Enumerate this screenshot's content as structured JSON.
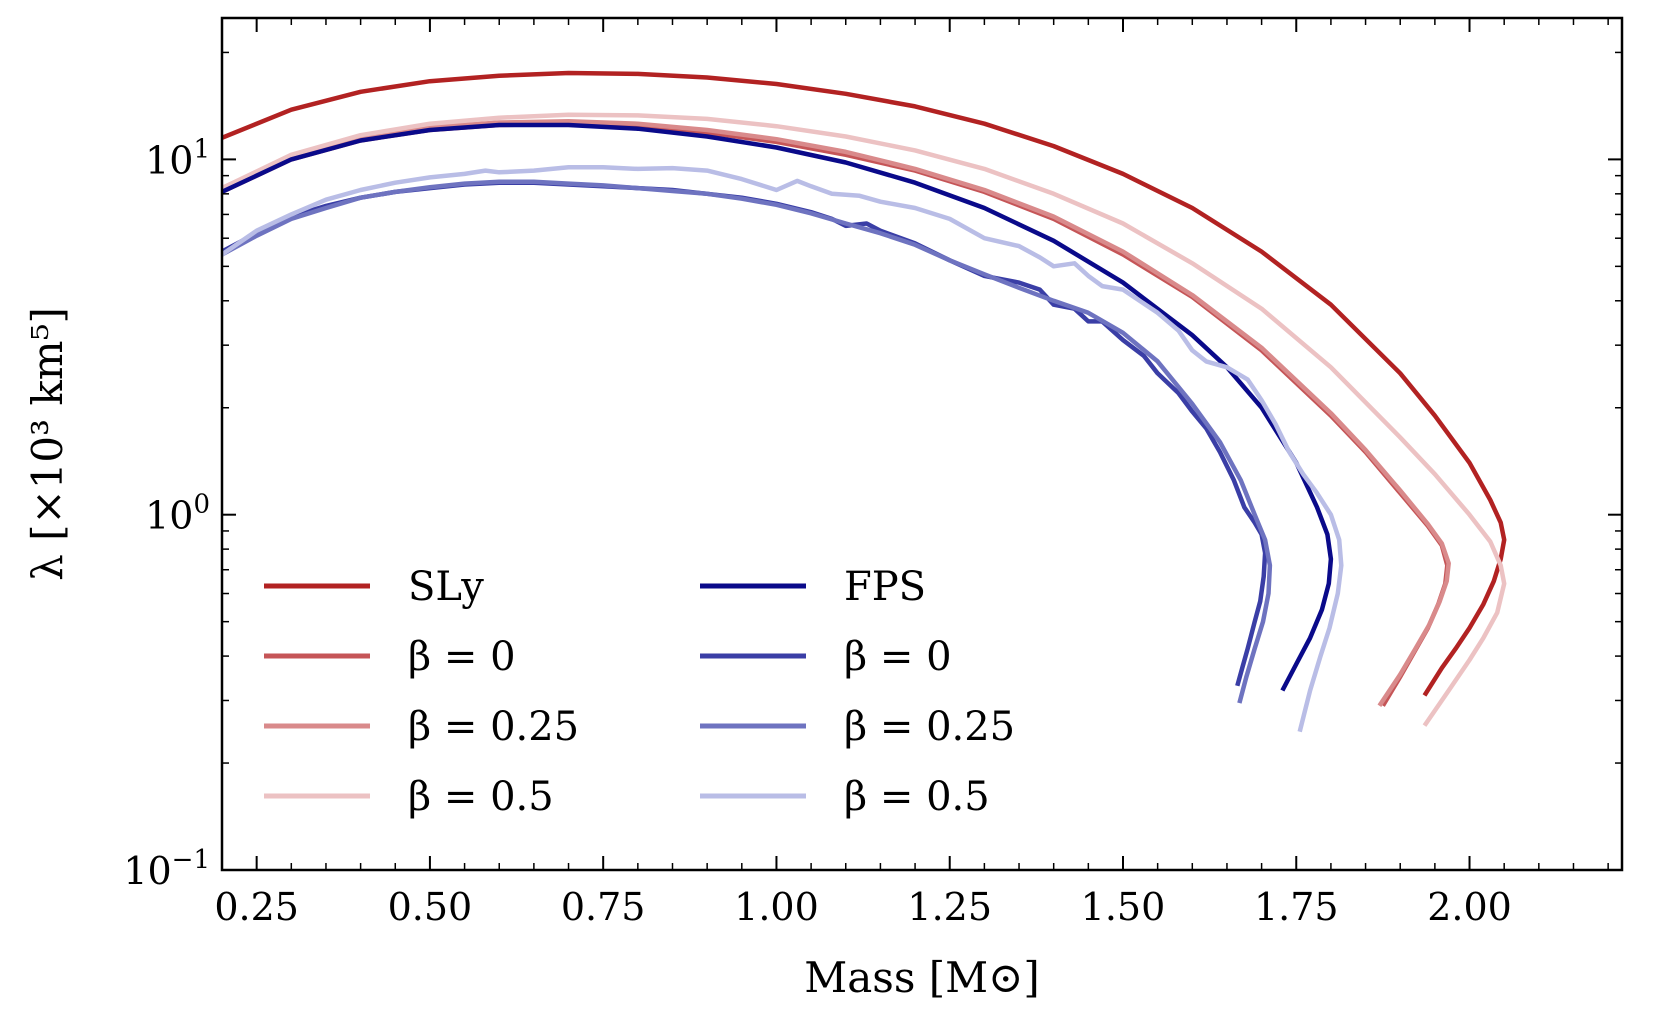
{
  "chart_data": {
    "type": "line",
    "title": "",
    "xlabel": "Mass [M⊙]",
    "ylabel": "λ [×10³ km⁵]",
    "xlim": [
      0.2,
      2.22
    ],
    "ylim": [
      0.1,
      25
    ],
    "yscale": "log",
    "grid": false,
    "legend_position": "lower-left",
    "legend_columns": 2,
    "xticks": [
      {
        "value": 0.25,
        "label": "0.25"
      },
      {
        "value": 0.5,
        "label": "0.50"
      },
      {
        "value": 0.75,
        "label": "0.75"
      },
      {
        "value": 1.0,
        "label": "1.00"
      },
      {
        "value": 1.25,
        "label": "1.25"
      },
      {
        "value": 1.5,
        "label": "1.50"
      },
      {
        "value": 1.75,
        "label": "1.75"
      },
      {
        "value": 2.0,
        "label": "2.00"
      }
    ],
    "yticks": [
      {
        "value": 0.1,
        "base": "10",
        "exp": "−1"
      },
      {
        "value": 1,
        "base": "10",
        "exp": "0"
      },
      {
        "value": 10,
        "base": "10",
        "exp": "1"
      }
    ],
    "series": [
      {
        "name": "SLy",
        "color": "#b22222",
        "opacity": 1.0,
        "points": [
          [
            0.2,
            11.5
          ],
          [
            0.3,
            13.8
          ],
          [
            0.4,
            15.5
          ],
          [
            0.5,
            16.6
          ],
          [
            0.6,
            17.2
          ],
          [
            0.7,
            17.5
          ],
          [
            0.8,
            17.4
          ],
          [
            0.9,
            17.0
          ],
          [
            1.0,
            16.3
          ],
          [
            1.1,
            15.3
          ],
          [
            1.2,
            14.1
          ],
          [
            1.3,
            12.6
          ],
          [
            1.4,
            10.9
          ],
          [
            1.5,
            9.1
          ],
          [
            1.6,
            7.3
          ],
          [
            1.7,
            5.5
          ],
          [
            1.8,
            3.9
          ],
          [
            1.9,
            2.5
          ],
          [
            1.95,
            1.9
          ],
          [
            2.0,
            1.4
          ],
          [
            2.03,
            1.1
          ],
          [
            2.045,
            0.95
          ],
          [
            2.05,
            0.85
          ],
          [
            2.045,
            0.75
          ],
          [
            2.035,
            0.65
          ],
          [
            2.02,
            0.56
          ],
          [
            2.0,
            0.48
          ],
          [
            1.98,
            0.42
          ],
          [
            1.96,
            0.37
          ],
          [
            1.935,
            0.31
          ]
        ]
      },
      {
        "name": "β = 0",
        "color": "#c55557",
        "opacity": 1.0,
        "points": [
          [
            0.2,
            8.1
          ],
          [
            0.3,
            10.0
          ],
          [
            0.4,
            11.3
          ],
          [
            0.5,
            12.1
          ],
          [
            0.6,
            12.5
          ],
          [
            0.7,
            12.6
          ],
          [
            0.8,
            12.4
          ],
          [
            0.9,
            11.9
          ],
          [
            1.0,
            11.2
          ],
          [
            1.1,
            10.3
          ],
          [
            1.2,
            9.3
          ],
          [
            1.3,
            8.1
          ],
          [
            1.4,
            6.8
          ],
          [
            1.5,
            5.4
          ],
          [
            1.6,
            4.1
          ],
          [
            1.7,
            2.9
          ],
          [
            1.8,
            1.9
          ],
          [
            1.85,
            1.5
          ],
          [
            1.9,
            1.15
          ],
          [
            1.94,
            0.93
          ],
          [
            1.96,
            0.82
          ],
          [
            1.968,
            0.72
          ],
          [
            1.965,
            0.64
          ],
          [
            1.955,
            0.56
          ],
          [
            1.94,
            0.48
          ],
          [
            1.92,
            0.41
          ],
          [
            1.9,
            0.35
          ],
          [
            1.875,
            0.29
          ]
        ]
      },
      {
        "name": "β = 0.25",
        "color": "#d98a8b",
        "opacity": 1.0,
        "points": [
          [
            0.2,
            8.3
          ],
          [
            0.3,
            10.2
          ],
          [
            0.4,
            11.5
          ],
          [
            0.5,
            12.3
          ],
          [
            0.6,
            12.7
          ],
          [
            0.7,
            12.8
          ],
          [
            0.8,
            12.6
          ],
          [
            0.9,
            12.1
          ],
          [
            1.0,
            11.4
          ],
          [
            1.1,
            10.5
          ],
          [
            1.2,
            9.4
          ],
          [
            1.3,
            8.2
          ],
          [
            1.4,
            6.9
          ],
          [
            1.5,
            5.5
          ],
          [
            1.6,
            4.15
          ],
          [
            1.7,
            2.95
          ],
          [
            1.8,
            1.93
          ],
          [
            1.85,
            1.52
          ],
          [
            1.9,
            1.17
          ],
          [
            1.94,
            0.94
          ],
          [
            1.96,
            0.83
          ],
          [
            1.97,
            0.73
          ],
          [
            1.967,
            0.65
          ],
          [
            1.957,
            0.57
          ],
          [
            1.942,
            0.49
          ],
          [
            1.922,
            0.42
          ],
          [
            1.9,
            0.355
          ],
          [
            1.87,
            0.29
          ]
        ]
      },
      {
        "name": "β = 0.5",
        "color": "#ecc2c3",
        "opacity": 1.0,
        "points": [
          [
            0.2,
            8.3
          ],
          [
            0.3,
            10.3
          ],
          [
            0.4,
            11.7
          ],
          [
            0.5,
            12.6
          ],
          [
            0.6,
            13.1
          ],
          [
            0.7,
            13.35
          ],
          [
            0.8,
            13.3
          ],
          [
            0.9,
            13.0
          ],
          [
            1.0,
            12.4
          ],
          [
            1.1,
            11.6
          ],
          [
            1.2,
            10.6
          ],
          [
            1.3,
            9.4
          ],
          [
            1.4,
            8.0
          ],
          [
            1.5,
            6.6
          ],
          [
            1.6,
            5.1
          ],
          [
            1.7,
            3.8
          ],
          [
            1.8,
            2.6
          ],
          [
            1.9,
            1.65
          ],
          [
            1.95,
            1.3
          ],
          [
            2.0,
            1.0
          ],
          [
            2.03,
            0.84
          ],
          [
            2.045,
            0.72
          ],
          [
            2.05,
            0.64
          ],
          [
            2.04,
            0.53
          ],
          [
            2.02,
            0.45
          ],
          [
            2.0,
            0.39
          ],
          [
            1.97,
            0.32
          ],
          [
            1.935,
            0.255
          ]
        ]
      },
      {
        "name": "FPS",
        "color": "#0a0a8a",
        "opacity": 1.0,
        "points": [
          [
            0.2,
            8.1
          ],
          [
            0.3,
            10.0
          ],
          [
            0.4,
            11.3
          ],
          [
            0.5,
            12.1
          ],
          [
            0.6,
            12.5
          ],
          [
            0.7,
            12.5
          ],
          [
            0.8,
            12.2
          ],
          [
            0.9,
            11.6
          ],
          [
            1.0,
            10.8
          ],
          [
            1.1,
            9.8
          ],
          [
            1.2,
            8.6
          ],
          [
            1.3,
            7.3
          ],
          [
            1.4,
            5.9
          ],
          [
            1.5,
            4.5
          ],
          [
            1.6,
            3.2
          ],
          [
            1.65,
            2.6
          ],
          [
            1.7,
            2.0
          ],
          [
            1.75,
            1.4
          ],
          [
            1.78,
            1.05
          ],
          [
            1.795,
            0.88
          ],
          [
            1.8,
            0.75
          ],
          [
            1.797,
            0.64
          ],
          [
            1.787,
            0.54
          ],
          [
            1.77,
            0.45
          ],
          [
            1.75,
            0.38
          ],
          [
            1.73,
            0.32
          ]
        ]
      },
      {
        "name": "β = 0",
        "color": "#3a3ea6",
        "opacity": 1.0,
        "points": [
          [
            0.2,
            5.5
          ],
          [
            0.25,
            6.2
          ],
          [
            0.3,
            6.9
          ],
          [
            0.35,
            7.4
          ],
          [
            0.4,
            7.8
          ],
          [
            0.45,
            8.1
          ],
          [
            0.5,
            8.3
          ],
          [
            0.55,
            8.5
          ],
          [
            0.6,
            8.6
          ],
          [
            0.65,
            8.6
          ],
          [
            0.7,
            8.5
          ],
          [
            0.75,
            8.4
          ],
          [
            0.8,
            8.3
          ],
          [
            0.85,
            8.2
          ],
          [
            0.9,
            8.0
          ],
          [
            0.95,
            7.8
          ],
          [
            1.0,
            7.5
          ],
          [
            1.05,
            7.1
          ],
          [
            1.08,
            6.8
          ],
          [
            1.1,
            6.5
          ],
          [
            1.13,
            6.6
          ],
          [
            1.15,
            6.3
          ],
          [
            1.2,
            5.8
          ],
          [
            1.25,
            5.2
          ],
          [
            1.3,
            4.7
          ],
          [
            1.35,
            4.5
          ],
          [
            1.38,
            4.3
          ],
          [
            1.4,
            3.9
          ],
          [
            1.43,
            3.8
          ],
          [
            1.45,
            3.5
          ],
          [
            1.47,
            3.5
          ],
          [
            1.5,
            3.1
          ],
          [
            1.53,
            2.8
          ],
          [
            1.55,
            2.5
          ],
          [
            1.58,
            2.2
          ],
          [
            1.6,
            1.95
          ],
          [
            1.62,
            1.75
          ],
          [
            1.64,
            1.5
          ],
          [
            1.66,
            1.25
          ],
          [
            1.675,
            1.05
          ],
          [
            1.69,
            0.95
          ],
          [
            1.7,
            0.88
          ],
          [
            1.705,
            0.78
          ],
          [
            1.703,
            0.67
          ],
          [
            1.698,
            0.57
          ],
          [
            1.69,
            0.5
          ],
          [
            1.68,
            0.42
          ],
          [
            1.672,
            0.37
          ],
          [
            1.665,
            0.33
          ]
        ]
      },
      {
        "name": "β = 0.25",
        "color": "#6e73c0",
        "opacity": 1.0,
        "points": [
          [
            0.2,
            5.4
          ],
          [
            0.25,
            6.1
          ],
          [
            0.3,
            6.8
          ],
          [
            0.35,
            7.3
          ],
          [
            0.4,
            7.8
          ],
          [
            0.45,
            8.1
          ],
          [
            0.5,
            8.35
          ],
          [
            0.55,
            8.55
          ],
          [
            0.6,
            8.65
          ],
          [
            0.65,
            8.65
          ],
          [
            0.7,
            8.55
          ],
          [
            0.75,
            8.45
          ],
          [
            0.8,
            8.3
          ],
          [
            0.85,
            8.15
          ],
          [
            0.9,
            8.0
          ],
          [
            0.95,
            7.75
          ],
          [
            1.0,
            7.45
          ],
          [
            1.05,
            7.05
          ],
          [
            1.1,
            6.6
          ],
          [
            1.15,
            6.2
          ],
          [
            1.2,
            5.75
          ],
          [
            1.25,
            5.2
          ],
          [
            1.3,
            4.75
          ],
          [
            1.35,
            4.35
          ],
          [
            1.4,
            4.0
          ],
          [
            1.45,
            3.7
          ],
          [
            1.5,
            3.25
          ],
          [
            1.55,
            2.7
          ],
          [
            1.6,
            2.05
          ],
          [
            1.64,
            1.6
          ],
          [
            1.67,
            1.25
          ],
          [
            1.69,
            1.0
          ],
          [
            1.705,
            0.85
          ],
          [
            1.712,
            0.72
          ],
          [
            1.71,
            0.6
          ],
          [
            1.702,
            0.5
          ],
          [
            1.69,
            0.42
          ],
          [
            1.678,
            0.35
          ],
          [
            1.668,
            0.295
          ]
        ]
      },
      {
        "name": "β = 0.5",
        "color": "#b9bde6",
        "opacity": 1.0,
        "points": [
          [
            0.2,
            5.4
          ],
          [
            0.25,
            6.3
          ],
          [
            0.3,
            7.0
          ],
          [
            0.35,
            7.7
          ],
          [
            0.4,
            8.2
          ],
          [
            0.45,
            8.6
          ],
          [
            0.5,
            8.9
          ],
          [
            0.55,
            9.1
          ],
          [
            0.58,
            9.3
          ],
          [
            0.6,
            9.2
          ],
          [
            0.65,
            9.3
          ],
          [
            0.7,
            9.5
          ],
          [
            0.75,
            9.5
          ],
          [
            0.8,
            9.4
          ],
          [
            0.85,
            9.45
          ],
          [
            0.9,
            9.3
          ],
          [
            0.95,
            8.8
          ],
          [
            1.0,
            8.2
          ],
          [
            1.03,
            8.7
          ],
          [
            1.05,
            8.4
          ],
          [
            1.08,
            8.0
          ],
          [
            1.12,
            7.9
          ],
          [
            1.15,
            7.6
          ],
          [
            1.2,
            7.3
          ],
          [
            1.25,
            6.8
          ],
          [
            1.3,
            6.0
          ],
          [
            1.35,
            5.7
          ],
          [
            1.38,
            5.3
          ],
          [
            1.4,
            5.0
          ],
          [
            1.43,
            5.1
          ],
          [
            1.45,
            4.7
          ],
          [
            1.47,
            4.4
          ],
          [
            1.5,
            4.3
          ],
          [
            1.55,
            3.7
          ],
          [
            1.58,
            3.3
          ],
          [
            1.6,
            2.9
          ],
          [
            1.62,
            2.7
          ],
          [
            1.65,
            2.6
          ],
          [
            1.68,
            2.4
          ],
          [
            1.7,
            2.1
          ],
          [
            1.72,
            1.8
          ],
          [
            1.74,
            1.5
          ],
          [
            1.76,
            1.3
          ],
          [
            1.78,
            1.15
          ],
          [
            1.8,
            1.0
          ],
          [
            1.812,
            0.85
          ],
          [
            1.815,
            0.72
          ],
          [
            1.81,
            0.6
          ],
          [
            1.798,
            0.48
          ],
          [
            1.785,
            0.4
          ],
          [
            1.77,
            0.32
          ],
          [
            1.755,
            0.245
          ]
        ]
      }
    ],
    "legend": [
      {
        "label": "SLy",
        "series_index": 0,
        "column": 0
      },
      {
        "label": "β = 0",
        "series_index": 1,
        "column": 0
      },
      {
        "label": "β = 0.25",
        "series_index": 2,
        "column": 0
      },
      {
        "label": "β = 0.5",
        "series_index": 3,
        "column": 0
      },
      {
        "label": "FPS",
        "series_index": 4,
        "column": 1
      },
      {
        "label": "β = 0",
        "series_index": 5,
        "column": 1
      },
      {
        "label": "β = 0.25",
        "series_index": 6,
        "column": 1
      },
      {
        "label": "β = 0.5",
        "series_index": 7,
        "column": 1
      }
    ]
  }
}
